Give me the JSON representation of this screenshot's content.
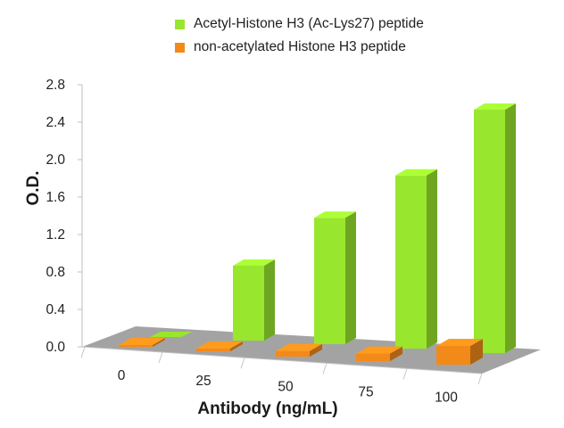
{
  "chart_data": {
    "type": "bar",
    "style": "3d",
    "categories": [
      "0",
      "25",
      "50",
      "75",
      "100"
    ],
    "series": [
      {
        "name": "Acetyl-Histone H3 (Ac-Lys27) peptide",
        "color": "#99e62e",
        "values": [
          0.0,
          0.8,
          1.35,
          1.85,
          2.6
        ]
      },
      {
        "name": "non-acetylated Histone H3 peptide",
        "color": "#f28a1a",
        "values": [
          0.01,
          0.03,
          0.06,
          0.08,
          0.2
        ]
      }
    ],
    "xlabel": "Antibody (ng/mL)",
    "ylabel": "O.D.",
    "ylim": [
      0,
      2.8
    ],
    "yticks": [
      "0.0",
      "0.4",
      "0.8",
      "1.2",
      "1.6",
      "2.0",
      "2.4",
      "2.8"
    ],
    "legend_position": "top",
    "grid": false
  }
}
